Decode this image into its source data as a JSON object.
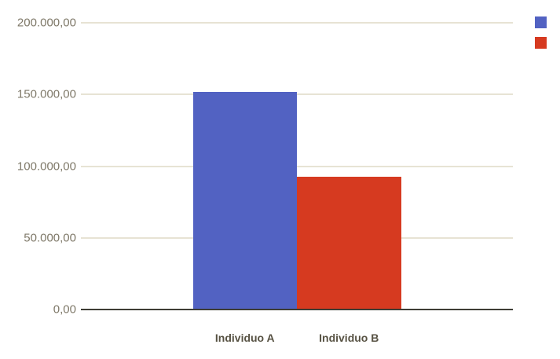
{
  "chart_data": {
    "type": "bar",
    "title": "",
    "categories": [
      "Individuo A",
      "Individuo B"
    ],
    "series": [
      {
        "name": "Individuo A",
        "value": 151000,
        "color": "#5262c2"
      },
      {
        "name": "Individuo B",
        "value": 92300,
        "color": "#d63a20"
      }
    ],
    "ylim": [
      0,
      200000
    ],
    "yticks": [
      {
        "value": 0,
        "label": "0,00"
      },
      {
        "value": 50000,
        "label": "50.000,00"
      },
      {
        "value": 100000,
        "label": "100.000,00"
      },
      {
        "value": 150000,
        "label": "150.000,00"
      },
      {
        "value": 200000,
        "label": "200.000,00"
      }
    ],
    "grid": true,
    "legend_position": "top-right",
    "legend_labels_visible": false,
    "number_format": "european (dot thousands, comma decimals)"
  },
  "colors": {
    "background": "#ffffff",
    "gridline": "#e7e3d4",
    "baseline": "#3e3d35",
    "y_label": "#7f7969",
    "x_label": "#575243"
  }
}
